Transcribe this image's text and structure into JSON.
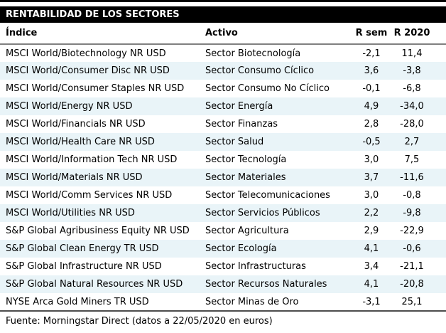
{
  "colors": {
    "title_bg": "#000000",
    "title_text": "#ffffff",
    "alt_row_bg": "#e9f4f8",
    "text": "#000000",
    "header_rule": "#808080",
    "bottom_rule": "#4d4d4d"
  },
  "chart_data": {
    "type": "table",
    "title": "RENTABILIDAD DE LOS SECTORES",
    "columns": [
      "Índice",
      "Activo",
      "R sem",
      "R 2020"
    ],
    "rows": [
      [
        "MSCI World/Biotechnology NR USD",
        "Sector Biotecnología",
        "-2,1",
        "11,4"
      ],
      [
        "MSCI World/Consumer Disc NR USD",
        "Sector Consumo Cíclico",
        "3,6",
        "-3,8"
      ],
      [
        "MSCI World/Consumer Staples NR USD",
        "Sector Consumo No Cíclico",
        "-0,1",
        "-6,8"
      ],
      [
        "MSCI World/Energy NR USD",
        "Sector Energía",
        "4,9",
        "-34,0"
      ],
      [
        "MSCI World/Financials NR USD",
        "Sector Finanzas",
        "2,8",
        "-28,0"
      ],
      [
        "MSCI World/Health Care NR USD",
        "Sector Salud",
        "-0,5",
        "2,7"
      ],
      [
        "MSCI World/Information Tech NR USD",
        "Sector Tecnología",
        "3,0",
        "7,5"
      ],
      [
        "MSCI World/Materials NR USD",
        "Sector Materiales",
        "3,7",
        "-11,6"
      ],
      [
        "MSCI World/Comm Services NR USD",
        "Sector Telecomunicaciones",
        "3,0",
        "-0,8"
      ],
      [
        "MSCI World/Utilities NR USD",
        "Sector Servicios Públicos",
        "2,2",
        "-9,8"
      ],
      [
        "S&P Global Agribusiness Equity NR USD",
        "Sector Agricultura",
        "2,9",
        "-22,9"
      ],
      [
        "S&P Global Clean Energy TR USD",
        "Sector Ecología",
        "4,1",
        "-0,6"
      ],
      [
        "S&P Global Infrastructure NR USD",
        "Sector Infrastructuras",
        "3,4",
        "-21,1"
      ],
      [
        "S&P Global Natural Resources NR USD",
        "Sector Recursos Naturales",
        "4,1",
        "-20,8"
      ],
      [
        "NYSE Arca Gold Miners TR USD",
        "Sector Minas de Oro",
        "-3,1",
        "25,1"
      ]
    ],
    "source": "Fuente: Morningstar Direct (datos a 22/05/2020 en euros)",
    "layout": {
      "row_striping": "even rows light blue",
      "numeric_alignment": "center",
      "text_alignment": "left"
    }
  }
}
